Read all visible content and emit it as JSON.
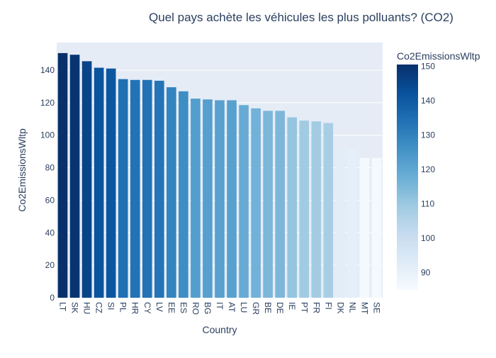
{
  "chart_data": {
    "type": "bar",
    "title": "Quel pays achète les véhicules les plus polluants? (CO2)",
    "xlabel": "Country",
    "ylabel": "Co2EmissionsWltp",
    "categories": [
      "LT",
      "SK",
      "HU",
      "CZ",
      "SI",
      "PL",
      "HR",
      "CY",
      "LV",
      "EE",
      "ES",
      "RO",
      "BG",
      "IT",
      "AT",
      "LU",
      "GR",
      "BE",
      "DE",
      "IE",
      "PT",
      "FR",
      "FI",
      "DK",
      "NL",
      "MT",
      "SE"
    ],
    "values": [
      150.5,
      149.5,
      145.5,
      141.5,
      141,
      134.5,
      134,
      134,
      133.5,
      129.5,
      127,
      122.5,
      122,
      121.5,
      121.5,
      118.5,
      116.5,
      115,
      115,
      111,
      109,
      108.5,
      107.5,
      92,
      91,
      86,
      86
    ],
    "ylim": [
      0,
      157
    ],
    "yticks": [
      0,
      20,
      40,
      60,
      80,
      100,
      120,
      140
    ],
    "grid": true,
    "colorbar": {
      "title": "Co2EmissionsWltp",
      "range": [
        85,
        150.5
      ],
      "ticks": [
        90,
        100,
        110,
        120,
        130,
        140,
        150
      ],
      "colorscale": [
        "#f7fbff",
        "#deebf7",
        "#c6dbef",
        "#9ecae1",
        "#6baed6",
        "#4292c6",
        "#2171b5",
        "#08519c",
        "#08306b"
      ]
    },
    "colors": {
      "plot_bg": "#e5ecf6",
      "grid": "#ffffff",
      "text": "#2a3f5f"
    }
  }
}
